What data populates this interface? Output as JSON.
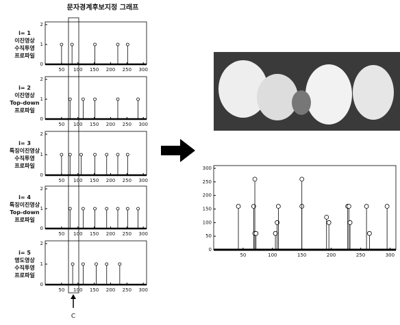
{
  "title": "문자경계후보지정 그래프",
  "marker_label": "C",
  "chart_data": [
    {
      "type": "stem",
      "label": [
        "i= 1",
        "이진영상",
        "수직투영",
        "프로파일"
      ],
      "x": [
        50,
        82,
        152,
        222,
        252
      ],
      "values": [
        1,
        1,
        1,
        1,
        1
      ],
      "xlim": [
        0,
        310
      ],
      "ylim": [
        0,
        2
      ],
      "xticks": [
        50,
        100,
        150,
        200,
        250,
        300
      ],
      "yticks": [
        0,
        1,
        2
      ]
    },
    {
      "type": "stem",
      "label": [
        "i= 2",
        "이진영상",
        "Top-down",
        "프로파일"
      ],
      "x": [
        76,
        116,
        152,
        222,
        284
      ],
      "values": [
        1,
        1,
        1,
        1,
        1
      ],
      "xlim": [
        0,
        310
      ],
      "ylim": [
        0,
        2
      ],
      "xticks": [
        50,
        100,
        150,
        200,
        250,
        300
      ],
      "yticks": [
        0,
        1,
        2
      ]
    },
    {
      "type": "stem",
      "label": [
        "i= 3",
        "특징이진영상",
        "수직투영",
        "프로파일"
      ],
      "x": [
        50,
        76,
        110,
        152,
        188,
        222,
        252
      ],
      "values": [
        1,
        1,
        1,
        1,
        1,
        1,
        1
      ],
      "xlim": [
        0,
        310
      ],
      "ylim": [
        0,
        2
      ],
      "xticks": [
        50,
        100,
        150,
        200,
        250,
        300
      ],
      "yticks": [
        0,
        1,
        2
      ]
    },
    {
      "type": "stem",
      "label": [
        "i= 4",
        "특징이진영상",
        "Top-down",
        "프로파일"
      ],
      "x": [
        76,
        116,
        152,
        188,
        222,
        252,
        284
      ],
      "values": [
        1,
        1,
        1,
        1,
        1,
        1,
        1
      ],
      "xlim": [
        0,
        310
      ],
      "ylim": [
        0,
        2
      ],
      "xticks": [
        50,
        100,
        150,
        200,
        250,
        300
      ],
      "yticks": [
        0,
        1,
        2
      ]
    },
    {
      "type": "stem",
      "label": [
        "i= 5",
        "명도영상",
        "수직투영",
        "프로파일"
      ],
      "x": [
        84,
        116,
        156,
        188,
        228
      ],
      "values": [
        1,
        1,
        1,
        1,
        1
      ],
      "xlim": [
        0,
        310
      ],
      "ylim": [
        0,
        2
      ],
      "xticks": [
        50,
        100,
        150,
        200,
        250,
        300
      ],
      "yticks": [
        0,
        1,
        2
      ]
    },
    {
      "type": "stem",
      "x": [
        42,
        68,
        70,
        70,
        72,
        105,
        108,
        110,
        150,
        150,
        192,
        196,
        228,
        230,
        232,
        260,
        265,
        295
      ],
      "values": [
        160,
        160,
        60,
        260,
        60,
        60,
        100,
        160,
        160,
        260,
        120,
        100,
        160,
        160,
        100,
        160,
        60,
        160
      ],
      "xlim": [
        0,
        310
      ],
      "ylim": [
        0,
        300
      ],
      "xticks": [
        50,
        100,
        150,
        200,
        250,
        300
      ],
      "yticks": [
        0,
        50,
        100,
        150,
        200,
        250,
        300
      ]
    }
  ]
}
